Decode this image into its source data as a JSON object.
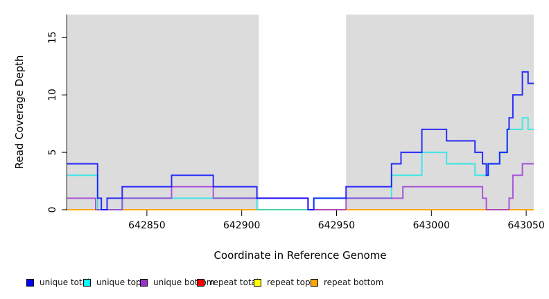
{
  "chart_data": {
    "type": "line",
    "step": true,
    "title": "",
    "xlabel": "Coordinate in Reference Genome",
    "ylabel": "Read Coverage Depth",
    "xlim": [
      642808,
      643054
    ],
    "ylim": [
      0,
      17
    ],
    "grid": false,
    "background_bands": [
      {
        "from": 642808,
        "to": 642909,
        "color": "#dcdcdc"
      },
      {
        "from": 642955,
        "to": 643054,
        "color": "#dcdcdc"
      }
    ],
    "x_ticks": [
      642850,
      642900,
      642950,
      643000,
      643050
    ],
    "y_ticks": [
      0,
      5,
      10,
      15
    ],
    "series": [
      {
        "name": "repeat total",
        "line_color": "#ff0000",
        "opacity": 1,
        "points": [
          [
            642808,
            0
          ]
        ]
      },
      {
        "name": "repeat top",
        "line_color": "#ffff00",
        "opacity": 1,
        "points": [
          [
            642808,
            0
          ]
        ]
      },
      {
        "name": "repeat bottom",
        "line_color": "#ffa500",
        "opacity": 1,
        "points": [
          [
            642808,
            0
          ]
        ]
      },
      {
        "name": "unique top",
        "line_color": "#00e8e8",
        "opacity": 0.7,
        "points": [
          [
            642808,
            3
          ],
          [
            642824,
            0
          ],
          [
            642837,
            1
          ],
          [
            642908,
            0
          ],
          [
            642938,
            1
          ],
          [
            642979,
            3
          ],
          [
            642995,
            5
          ],
          [
            643008,
            4
          ],
          [
            643023,
            3
          ],
          [
            643030,
            4
          ],
          [
            643036,
            5
          ],
          [
            643040,
            7
          ],
          [
            643048,
            8
          ],
          [
            643051,
            7
          ]
        ]
      },
      {
        "name": "unique bottom",
        "line_color": "#9b30d9",
        "opacity": 0.78,
        "points": [
          [
            642808,
            1
          ],
          [
            642823,
            0
          ],
          [
            642837,
            1
          ],
          [
            642863,
            2
          ],
          [
            642885,
            1
          ],
          [
            642935,
            0
          ],
          [
            642955,
            1
          ],
          [
            642985,
            2
          ],
          [
            643027,
            1
          ],
          [
            643029,
            0
          ],
          [
            643041,
            1
          ],
          [
            643043,
            3
          ],
          [
            643048,
            4
          ]
        ]
      },
      {
        "name": "unique total",
        "line_color": "#0000ff",
        "opacity": 0.8,
        "points": [
          [
            642808,
            4
          ],
          [
            642824,
            1
          ],
          [
            642826,
            0
          ],
          [
            642829,
            1
          ],
          [
            642837,
            2
          ],
          [
            642863,
            3
          ],
          [
            642885,
            2
          ],
          [
            642908,
            1
          ],
          [
            642935,
            0
          ],
          [
            642938,
            1
          ],
          [
            642955,
            2
          ],
          [
            642979,
            4
          ],
          [
            642984,
            5
          ],
          [
            642995,
            7
          ],
          [
            643008,
            6
          ],
          [
            643023,
            5
          ],
          [
            643027,
            4
          ],
          [
            643029,
            3
          ],
          [
            643030,
            4
          ],
          [
            643036,
            5
          ],
          [
            643040,
            7
          ],
          [
            643041,
            8
          ],
          [
            643043,
            10
          ],
          [
            643048,
            12
          ],
          [
            643051,
            11
          ]
        ]
      }
    ],
    "legend_position": "bottom"
  },
  "legend": {
    "items": [
      {
        "label": "unique total",
        "color": "#0000ff"
      },
      {
        "label": "unique top",
        "color": "#00ffff"
      },
      {
        "label": "unique bottom",
        "color": "#9932cc"
      },
      {
        "label": "repeat total",
        "color": "#ff0000"
      },
      {
        "label": "repeat top",
        "color": "#ffff00"
      },
      {
        "label": "repeat bottom",
        "color": "#ffa500"
      }
    ]
  }
}
